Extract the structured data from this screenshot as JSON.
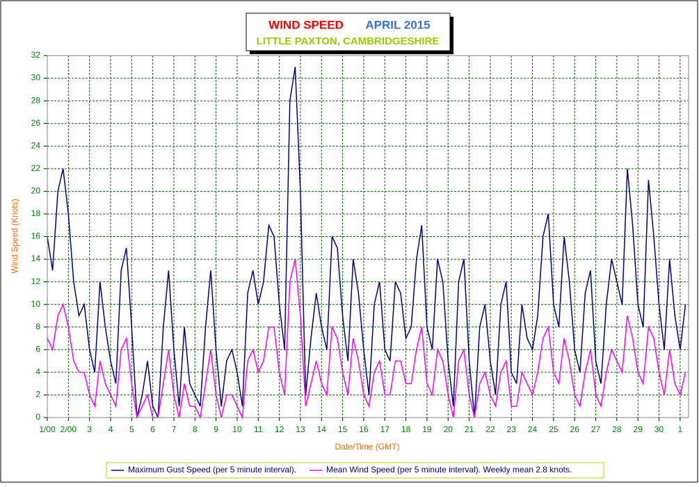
{
  "chart_data": {
    "type": "line",
    "title": "WIND SPEED",
    "subtitle": "APRIL 2015",
    "location": "LITTLE PAXTON, CAMBRIDGESHIRE",
    "x_label": "Date/Time (GMT)",
    "y_label": "Wind Speed (Knots)",
    "grid": true,
    "legend": "bottom",
    "xlim": [
      0,
      30.4
    ],
    "ylim": [
      0,
      32
    ],
    "yticks": [
      0,
      2,
      4,
      6,
      8,
      10,
      12,
      14,
      16,
      18,
      20,
      22,
      24,
      26,
      28,
      30,
      32
    ],
    "xticks": [
      {
        "value": 0,
        "label": "1/00"
      },
      {
        "value": 1,
        "label": "2/00"
      },
      {
        "value": 2,
        "label": "3"
      },
      {
        "value": 3,
        "label": "4"
      },
      {
        "value": 4,
        "label": "5"
      },
      {
        "value": 5,
        "label": "6"
      },
      {
        "value": 6,
        "label": "7"
      },
      {
        "value": 7,
        "label": "8"
      },
      {
        "value": 8,
        "label": "9"
      },
      {
        "value": 9,
        "label": "10"
      },
      {
        "value": 10,
        "label": "11"
      },
      {
        "value": 11,
        "label": "12"
      },
      {
        "value": 12,
        "label": "13"
      },
      {
        "value": 13,
        "label": "14"
      },
      {
        "value": 14,
        "label": "15"
      },
      {
        "value": 15,
        "label": "16"
      },
      {
        "value": 16,
        "label": "17"
      },
      {
        "value": 17,
        "label": "18"
      },
      {
        "value": 18,
        "label": "19"
      },
      {
        "value": 19,
        "label": "20"
      },
      {
        "value": 20,
        "label": "21"
      },
      {
        "value": 21,
        "label": "22"
      },
      {
        "value": 22,
        "label": "23"
      },
      {
        "value": 23,
        "label": "24"
      },
      {
        "value": 24,
        "label": "25"
      },
      {
        "value": 25,
        "label": "26"
      },
      {
        "value": 26,
        "label": "27"
      },
      {
        "value": 27,
        "label": "28"
      },
      {
        "value": 28,
        "label": "29"
      },
      {
        "value": 29,
        "label": "30"
      },
      {
        "value": 30,
        "label": "1"
      }
    ],
    "x": [
      0,
      0.25,
      0.5,
      0.75,
      1,
      1.25,
      1.5,
      1.75,
      2,
      2.25,
      2.5,
      2.75,
      3,
      3.25,
      3.5,
      3.75,
      4,
      4.25,
      4.5,
      4.75,
      5,
      5.25,
      5.5,
      5.75,
      6,
      6.25,
      6.5,
      6.75,
      7,
      7.25,
      7.5,
      7.75,
      8,
      8.25,
      8.5,
      8.75,
      9,
      9.25,
      9.5,
      9.75,
      10,
      10.25,
      10.5,
      10.75,
      11,
      11.25,
      11.5,
      11.75,
      12,
      12.25,
      12.5,
      12.75,
      13,
      13.25,
      13.5,
      13.75,
      14,
      14.25,
      14.5,
      14.75,
      15,
      15.25,
      15.5,
      15.75,
      16,
      16.25,
      16.5,
      16.75,
      17,
      17.25,
      17.5,
      17.75,
      18,
      18.25,
      18.5,
      18.75,
      19,
      19.25,
      19.5,
      19.75,
      20,
      20.25,
      20.5,
      20.75,
      21,
      21.25,
      21.5,
      21.75,
      22,
      22.25,
      22.5,
      22.75,
      23,
      23.25,
      23.5,
      23.75,
      24,
      24.25,
      24.5,
      24.75,
      25,
      25.25,
      25.5,
      25.75,
      26,
      26.25,
      26.5,
      26.75,
      27,
      27.25,
      27.5,
      27.75,
      28,
      28.25,
      28.5,
      28.75,
      29,
      29.25,
      29.5,
      29.75,
      30,
      30.25
    ],
    "series": [
      {
        "name": "Maximum Gust Speed (per 5 minute interval).",
        "color": "#000080",
        "values": [
          16,
          13,
          20,
          22,
          18,
          12,
          9,
          10,
          6,
          4,
          12,
          8,
          5,
          3,
          13,
          15,
          8,
          0,
          2,
          5,
          1,
          0,
          8,
          13,
          6,
          1,
          8,
          3,
          2,
          1,
          8,
          13,
          6,
          1,
          5,
          6,
          4,
          1,
          11,
          13,
          10,
          12,
          17,
          16,
          10,
          6,
          28,
          31,
          20,
          2,
          7,
          11,
          8,
          6,
          16,
          15,
          9,
          5,
          14,
          11,
          6,
          2,
          10,
          12,
          6,
          5,
          12,
          11,
          7,
          8,
          14,
          17,
          8,
          6,
          14,
          12,
          5,
          1,
          12,
          14,
          5,
          0,
          8,
          10,
          5,
          2,
          10,
          12,
          4,
          3,
          10,
          7,
          6,
          9,
          16,
          18,
          10,
          8,
          16,
          12,
          6,
          4,
          11,
          13,
          5,
          3,
          10,
          14,
          12,
          10,
          22,
          17,
          10,
          8,
          21,
          16,
          10,
          6,
          14,
          9,
          6,
          10
        ]
      },
      {
        "name": "Mean Wind Speed (per 5 minute interval). Weekly mean 2.8 knots.",
        "color": "#ff00ff",
        "values": [
          7,
          6,
          9,
          10,
          8,
          5,
          4,
          4,
          2,
          1,
          5,
          3,
          2,
          1,
          6,
          7,
          3,
          0,
          1,
          2,
          0,
          0,
          3,
          6,
          2,
          0,
          3,
          1,
          1,
          0,
          3,
          6,
          2,
          0,
          2,
          2,
          1,
          0,
          5,
          6,
          4,
          5,
          8,
          8,
          4,
          2,
          12,
          14,
          9,
          1,
          3,
          5,
          3,
          2,
          8,
          7,
          4,
          2,
          7,
          5,
          2,
          1,
          4,
          5,
          2,
          2,
          5,
          5,
          3,
          3,
          6,
          8,
          3,
          2,
          6,
          5,
          2,
          0,
          5,
          6,
          2,
          0,
          3,
          4,
          2,
          1,
          4,
          5,
          1,
          1,
          4,
          3,
          2,
          4,
          7,
          8,
          4,
          3,
          7,
          5,
          2,
          1,
          4,
          6,
          2,
          1,
          4,
          6,
          5,
          4,
          9,
          7,
          4,
          3,
          8,
          7,
          4,
          2,
          6,
          3,
          2,
          4
        ]
      }
    ]
  }
}
